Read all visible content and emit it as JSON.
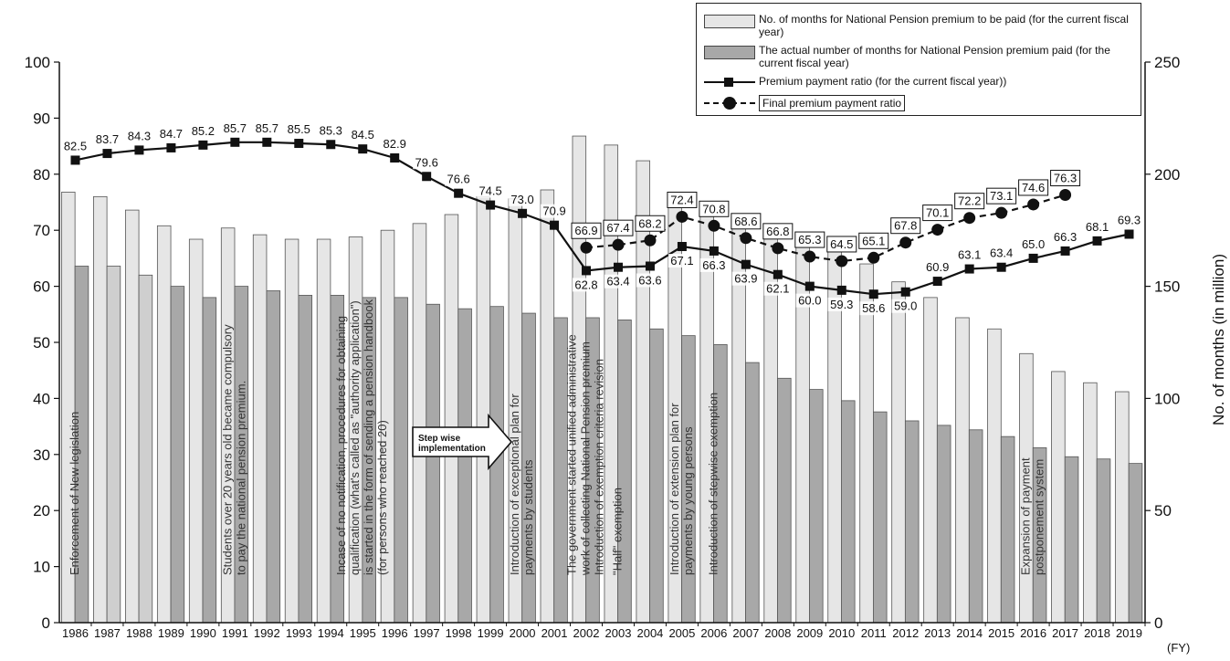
{
  "chart_data": {
    "type": "bar+line",
    "xlabel": "(FY)",
    "y2label": "No. of months (in million)",
    "ylim": [
      0,
      100
    ],
    "y2lim": [
      0,
      250
    ],
    "yticks": [
      "0",
      "10",
      "20",
      "30",
      "40",
      "50",
      "60",
      "70",
      "80",
      "90",
      "100"
    ],
    "y2ticks": [
      "0",
      "50",
      "100",
      "150",
      "200",
      "250"
    ],
    "categories": [
      "1986",
      "1987",
      "1988",
      "1989",
      "1990",
      "1991",
      "1992",
      "1993",
      "1994",
      "1995",
      "1996",
      "1997",
      "1998",
      "1999",
      "2000",
      "2001",
      "2002",
      "2003",
      "2004",
      "2005",
      "2006",
      "2007",
      "2008",
      "2009",
      "2010",
      "2011",
      "2012",
      "2013",
      "2014",
      "2015",
      "2016",
      "2017",
      "2018",
      "2019"
    ],
    "series": [
      {
        "name": "No. of months for National Pension premium to be paid (for the current fiscal year)",
        "type": "bar",
        "axis": "right",
        "color": "#e6e6e6",
        "values": [
          192,
          190,
          184,
          177,
          171,
          176,
          173,
          171,
          171,
          172,
          175,
          178,
          182,
          190,
          189,
          193,
          217,
          213,
          206,
          191,
          187,
          181,
          175,
          173,
          167,
          160,
          152,
          145,
          136,
          131,
          120,
          112,
          107,
          103
        ]
      },
      {
        "name": "The actual number of months for National Pension premium paid (for the current fiscal year)",
        "type": "bar",
        "axis": "right",
        "color": "#a8a8a8",
        "values": [
          159,
          159,
          155,
          150,
          145,
          150,
          148,
          146,
          146,
          145,
          145,
          142,
          140,
          141,
          138,
          136,
          136,
          135,
          131,
          128,
          124,
          116,
          109,
          104,
          99,
          94,
          90,
          88,
          86,
          83,
          78,
          74,
          73,
          71
        ]
      },
      {
        "name": "Premium payment ratio (for the current fiscal year))",
        "type": "line",
        "axis": "left",
        "values": [
          82.5,
          83.7,
          84.3,
          84.7,
          85.2,
          85.7,
          85.7,
          85.5,
          85.3,
          84.5,
          82.9,
          79.6,
          76.6,
          74.5,
          73.0,
          70.9,
          62.8,
          63.4,
          63.6,
          67.1,
          66.3,
          63.9,
          62.1,
          60.0,
          59.3,
          58.6,
          59.0,
          60.9,
          63.1,
          63.4,
          65.0,
          66.3,
          68.1,
          69.3
        ],
        "labels": [
          "82.5",
          "83.7",
          "84.3",
          "84.7",
          "85.2",
          "85.7",
          "85.7",
          "85.5",
          "85.3",
          "84.5",
          "82.9",
          "79.6",
          "76.6",
          "74.5",
          "73.0",
          "70.9",
          "62.8",
          "63.4",
          "63.6",
          "67.1",
          "66.3",
          "63.9",
          "62.1",
          "60.0",
          "59.3",
          "58.6",
          "59.0",
          "60.9",
          "63.1",
          "63.4",
          "65.0",
          "66.3",
          "68.1",
          "69.3"
        ]
      },
      {
        "name": "Final premium payment ratio",
        "type": "dashed-line",
        "axis": "left",
        "x": [
          "2002",
          "2003",
          "2004",
          "2005",
          "2006",
          "2007",
          "2008",
          "2009",
          "2010",
          "2011",
          "2012",
          "2013",
          "2014",
          "2015",
          "2016",
          "2017"
        ],
        "values": [
          66.9,
          67.4,
          68.2,
          72.4,
          70.8,
          68.6,
          66.8,
          65.3,
          64.5,
          65.1,
          67.8,
          70.1,
          72.2,
          73.1,
          74.6,
          76.3
        ],
        "labels": [
          "66.9",
          "67.4",
          "68.2",
          "72.4",
          "70.8",
          "68.6",
          "66.8",
          "65.3",
          "64.5",
          "65.1",
          "67.8",
          "70.1",
          "72.2",
          "73.1",
          "74.6",
          "76.3"
        ]
      }
    ],
    "annotations": [
      {
        "year": "1986",
        "lines": [
          "Enforcement of New legislation"
        ]
      },
      {
        "year": "1991",
        "lines": [
          "Students over 20 years old became compulsory",
          "to pay the national pension premium."
        ]
      },
      {
        "year": "1995",
        "lines": [
          "Incase of no notification, procedures for obtaining",
          "qualification (what's called as \"authority application\")",
          "is started in the form of sending a pension handbook",
          "(for persons who reached 20)"
        ]
      },
      {
        "year": "2000",
        "lines": [
          "Introduction of exceptional plan for",
          "payments by students"
        ]
      },
      {
        "year": "2002",
        "lines": [
          "The government started unified administrative",
          "work of collecting National Pension premium",
          "Introduction of exemption criteria revision"
        ]
      },
      {
        "year": "2003",
        "lines": [
          "\"Half\" exemption"
        ]
      },
      {
        "year": "2005",
        "lines": [
          "Introduction of extension plan for",
          "payments by young persons"
        ]
      },
      {
        "year": "2006",
        "lines": [
          "Introduction of stepwise exemption"
        ]
      },
      {
        "year": "2016",
        "lines": [
          "Expansion of payment",
          "postponement system"
        ]
      }
    ],
    "callout": "Step wise implementation"
  }
}
